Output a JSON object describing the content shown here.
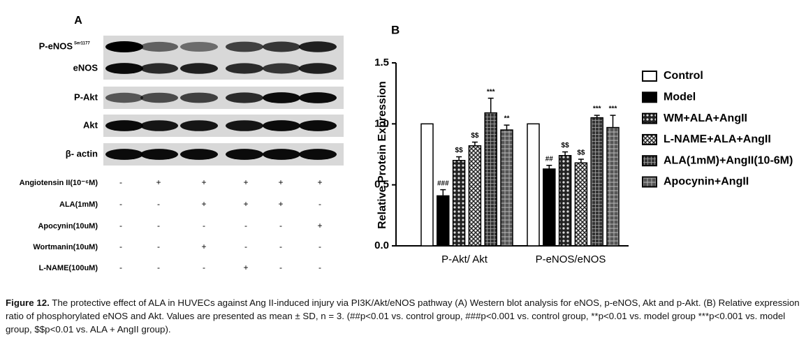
{
  "panel_a": {
    "label": "A",
    "blot_rows": [
      {
        "name": "P-eNOS",
        "sup": "Ser1177"
      },
      {
        "name": "eNOS"
      },
      {
        "name": "P-Akt"
      },
      {
        "name": "Akt"
      },
      {
        "name": "β- actin"
      }
    ],
    "treatments": [
      {
        "name": "Angiotensin II(10⁻⁶M)",
        "signs": [
          "-",
          "+",
          "+",
          "+",
          "+",
          "+"
        ]
      },
      {
        "name": "ALA(1mM)",
        "signs": [
          "-",
          "-",
          "+",
          "+",
          "+",
          "-"
        ]
      },
      {
        "name": "Apocynin(10uM)",
        "signs": [
          "-",
          "-",
          "-",
          "-",
          "-",
          "+"
        ]
      },
      {
        "name": "Wortmanin(10uM)",
        "signs": [
          "-",
          "-",
          "+",
          "-",
          "-",
          "-"
        ]
      },
      {
        "name": "L-NAME(100uM)",
        "signs": [
          "-",
          "-",
          "-",
          "+",
          "-",
          "-"
        ]
      }
    ]
  },
  "chart_data": {
    "type": "bar",
    "panel_label": "B",
    "ylabel": "Relative Protein Expression",
    "categories": [
      "P-Akt/ Akt",
      "P-eNOS/eNOS"
    ],
    "ylim": [
      0,
      1.5
    ],
    "yticks": [
      {
        "value": 0,
        "label": "0.0"
      },
      {
        "value": 0.5,
        "label": "0.5"
      },
      {
        "value": 1,
        "label": "1.0"
      },
      {
        "value": 1.5,
        "label": "1.5"
      }
    ],
    "series": [
      {
        "name": "Control",
        "color": "#ffffff",
        "pattern": "solid",
        "values": [
          1.0,
          1.0
        ],
        "errors": [
          0,
          0
        ],
        "annotations": [
          null,
          null
        ]
      },
      {
        "name": "Model",
        "color": "#000000",
        "pattern": "solid",
        "values": [
          0.41,
          0.63
        ],
        "errors": [
          0.05,
          0.03
        ],
        "annotations": [
          "###",
          "##"
        ]
      },
      {
        "name": "WM+ALA+AngII",
        "color": "#222222",
        "pattern": "dots",
        "values": [
          0.7,
          0.74
        ],
        "errors": [
          0.03,
          0.03
        ],
        "annotations": [
          "$$",
          "$$"
        ]
      },
      {
        "name": "L-NAME+ALA+AngII",
        "color": "#333333",
        "pattern": "cross",
        "values": [
          0.82,
          0.68
        ],
        "errors": [
          0.03,
          0.03
        ],
        "annotations": [
          "$$",
          "$$"
        ]
      },
      {
        "name": "ALA(1mM)+AngII(10-6M)",
        "color": "#333333",
        "pattern": "grid",
        "values": [
          1.09,
          1.05
        ],
        "errors": [
          0.12,
          0.02
        ],
        "annotations": [
          "***",
          "***"
        ]
      },
      {
        "name": "Apocynin+AngII",
        "color": "#555555",
        "pattern": "plus",
        "values": [
          0.95,
          0.97
        ],
        "errors": [
          0.04,
          0.1
        ],
        "annotations": [
          "**",
          "***"
        ]
      }
    ],
    "legend": "right"
  },
  "caption": {
    "label": "Figure 12.",
    "text": "The protective effect of ALA in HUVECs against Ang II-induced injury via PI3K/Akt/eNOS pathway (A) Western blot analysis for eNOS, p-eNOS, Akt and p-Akt. (B) Relative expression ratio of phosphorylated eNOS and Akt. Values are presented as mean ± SD, n = 3. (##p<0.01 vs. control group, ###p<0.001 vs. control group, **p<0.01 vs. model group ***p<0.001 vs. model group, $$p<0.01 vs. ALA + AngII group)."
  }
}
